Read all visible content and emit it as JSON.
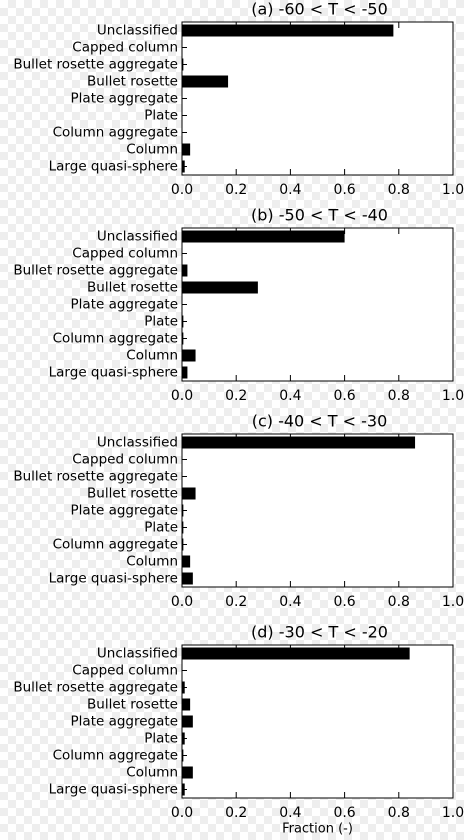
{
  "chart_data": [
    {
      "type": "bar",
      "orientation": "horizontal",
      "title": "(a) -60 < T < -50",
      "categories": [
        "Unclassified",
        "Capped column",
        "Bullet rosette aggregate",
        "Bullet rosette",
        "Plate aggregate",
        "Plate",
        "Column aggregate",
        "Column",
        "Large quasi-sphere"
      ],
      "values": [
        0.78,
        0,
        0.005,
        0.17,
        0,
        0,
        0,
        0.03,
        0.01
      ],
      "color": "#000000",
      "xlim": [
        0,
        1
      ],
      "xticks": [
        {
          "value": 0,
          "label": "0.0"
        },
        0.2,
        0.4,
        0.6,
        0.8,
        {
          "value": 1,
          "label": "1.0"
        }
      ]
    },
    {
      "type": "bar",
      "orientation": "horizontal",
      "title": "(b) -50 < T < -40",
      "categories": [
        "Unclassified",
        "Capped column",
        "Bullet rosette aggregate",
        "Bullet rosette",
        "Plate aggregate",
        "Plate",
        "Column aggregate",
        "Column",
        "Large quasi-sphere"
      ],
      "values": [
        0.6,
        0,
        0.02,
        0.28,
        0,
        0.005,
        0.005,
        0.05,
        0.02
      ],
      "color": "#000000",
      "xlim": [
        0,
        1
      ],
      "xticks": [
        {
          "value": 0,
          "label": "0.0"
        },
        0.2,
        0.4,
        0.6,
        0.8,
        {
          "value": 1,
          "label": "1.0"
        }
      ]
    },
    {
      "type": "bar",
      "orientation": "horizontal",
      "title": "(c) -40 < T < -30",
      "categories": [
        "Unclassified",
        "Capped column",
        "Bullet rosette aggregate",
        "Bullet rosette",
        "Plate aggregate",
        "Plate",
        "Column aggregate",
        "Column",
        "Large quasi-sphere"
      ],
      "values": [
        0.86,
        0,
        0,
        0.05,
        0.005,
        0.005,
        0.005,
        0.03,
        0.04
      ],
      "color": "#000000",
      "xlim": [
        0,
        1
      ],
      "xticks": [
        {
          "value": 0,
          "label": "0.0"
        },
        0.2,
        0.4,
        0.6,
        0.8,
        {
          "value": 1,
          "label": "1.0"
        }
      ]
    },
    {
      "type": "bar",
      "orientation": "horizontal",
      "title": "(d) -30 < T < -20",
      "categories": [
        "Unclassified",
        "Capped column",
        "Bullet rosette aggregate",
        "Bullet rosette",
        "Plate aggregate",
        "Plate",
        "Column aggregate",
        "Column",
        "Large quasi-sphere"
      ],
      "values": [
        0.84,
        0,
        0.01,
        0.03,
        0.04,
        0.01,
        0.005,
        0.04,
        0.01
      ],
      "color": "#000000",
      "xlim": [
        0,
        1
      ],
      "xticks": [
        {
          "value": 0,
          "label": "0.0"
        },
        0.2,
        0.4,
        0.6,
        0.8,
        {
          "value": 1,
          "label": "1.0"
        }
      ],
      "xlabel": "Fraction (-)"
    }
  ]
}
